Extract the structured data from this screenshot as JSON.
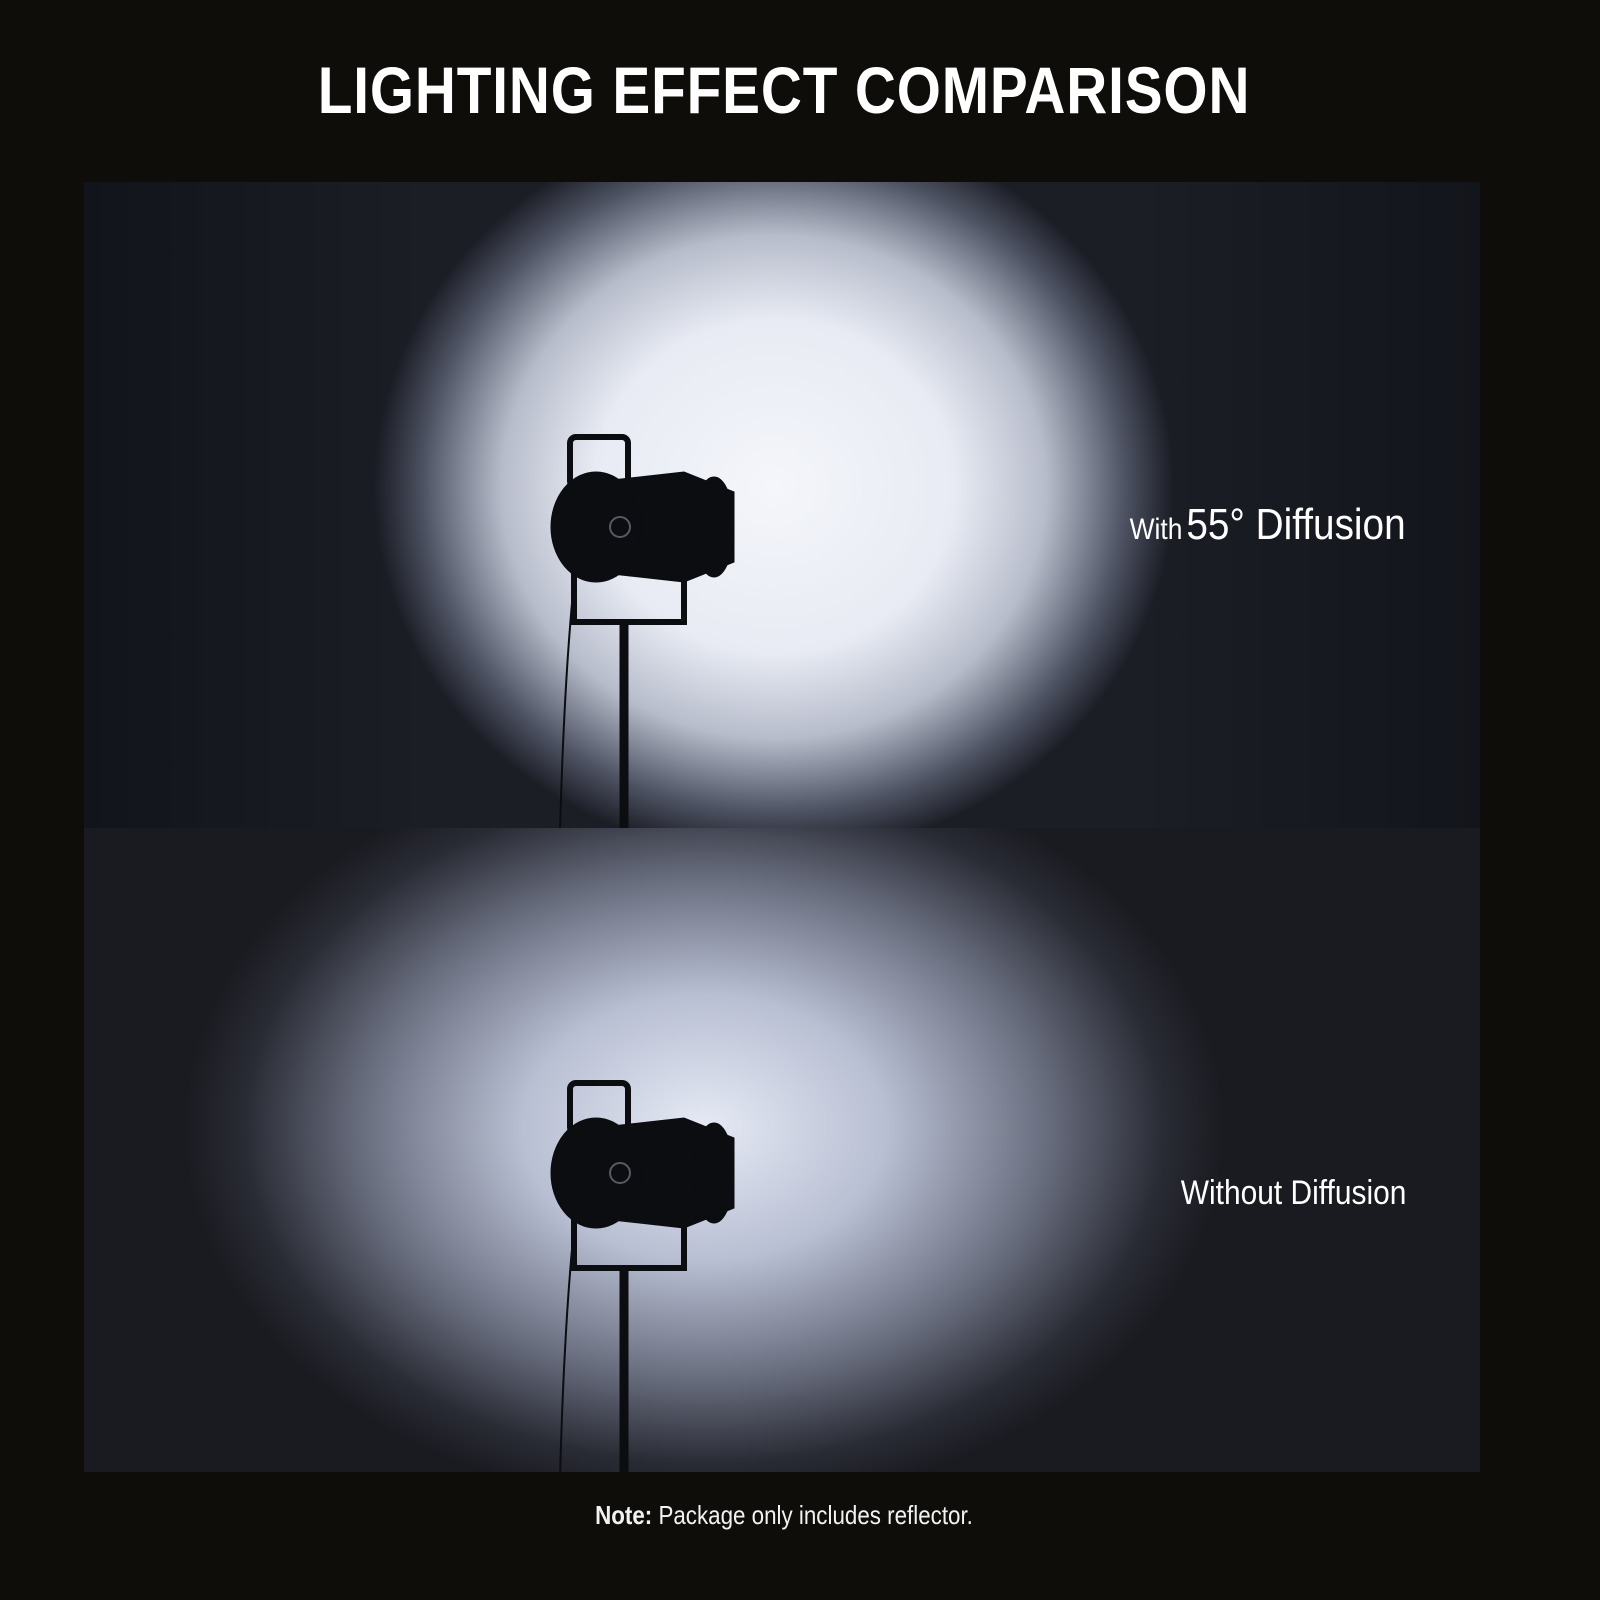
{
  "title": "LIGHTING EFFECT COMPARISON",
  "panels": [
    {
      "label_prefix": "With",
      "label_main": "55° Diffusion"
    },
    {
      "label_main": "Without Diffusion"
    }
  ],
  "note": {
    "bold": "Note:",
    "text": "Package only includes reflector."
  }
}
